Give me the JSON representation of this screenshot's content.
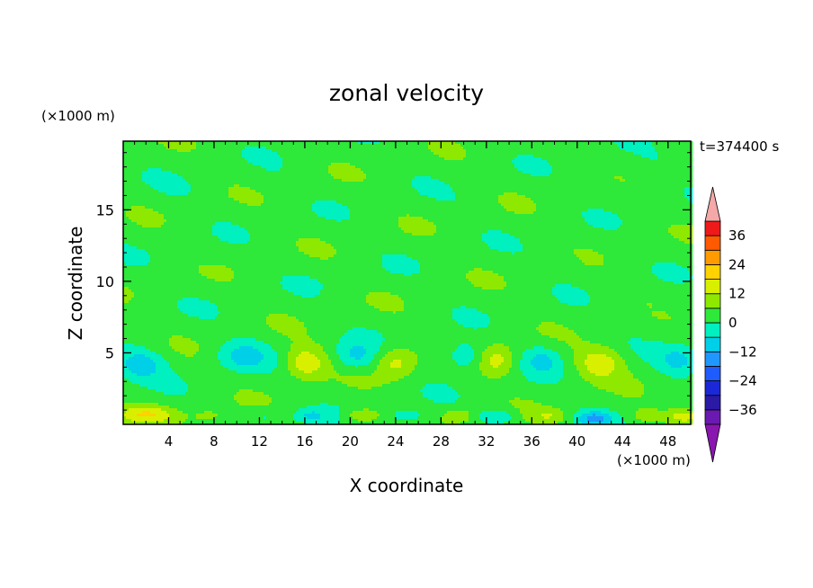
{
  "chart_data": {
    "type": "heatmap",
    "title": "zonal velocity",
    "xlabel": "X coordinate",
    "ylabel": "Z coordinate",
    "x_unit": "(×1000 m)",
    "y_unit": "(×1000 m)",
    "time_label": "t=374400 s",
    "xlim": [
      0,
      50
    ],
    "ylim": [
      0,
      19.8
    ],
    "x_ticks": [
      4,
      8,
      12,
      16,
      20,
      24,
      28,
      32,
      36,
      40,
      44,
      48
    ],
    "y_ticks": [
      5,
      10,
      15
    ],
    "x_tick_labels": [
      "4",
      "8",
      "12",
      "16",
      "20",
      "24",
      "28",
      "32",
      "36",
      "40",
      "44",
      "48"
    ],
    "y_tick_labels": [
      "5",
      "10",
      "15"
    ],
    "colorbar": {
      "levels": [
        -42,
        -36,
        -30,
        -24,
        -18,
        -12,
        -6,
        0,
        6,
        12,
        18,
        24,
        30,
        36,
        42
      ],
      "labels": [
        {
          "value": 36,
          "text": "36"
        },
        {
          "value": 24,
          "text": "24"
        },
        {
          "value": 12,
          "text": "12"
        },
        {
          "value": 0,
          "text": "0"
        },
        {
          "value": -12,
          "text": "−12"
        },
        {
          "value": -24,
          "text": "−24"
        },
        {
          "value": -36,
          "text": "−36"
        }
      ],
      "colors": [
        "#6a1ab0",
        "#2a1aa6",
        "#1b28d8",
        "#1f5cff",
        "#1f97ff",
        "#00cfe8",
        "#00f0c0",
        "#2ee83a",
        "#8fe800",
        "#d8f000",
        "#ffd200",
        "#ff9a00",
        "#ff5a00",
        "#ee1a1a"
      ],
      "under_color": "#8a16b0",
      "over_color": "#f4a8a8"
    },
    "background_value": 3,
    "features": [
      {
        "x": 13.5,
        "z": 17.0,
        "sx": 2.5,
        "sy": 0.8,
        "v": -1.5
      },
      {
        "x": 24.0,
        "z": 18.2,
        "sx": 2.5,
        "sy": 0.7,
        "v": -1.5
      },
      {
        "x": 5.0,
        "z": 16.4,
        "sx": 2.0,
        "sy": 0.7,
        "v": -1.5
      },
      {
        "x": 42.0,
        "z": 16.8,
        "sx": 3.0,
        "sy": 0.8,
        "v": -1.5
      },
      {
        "x": 47.5,
        "z": 18.3,
        "sx": 2.0,
        "sy": 0.7,
        "v": -1.5
      },
      {
        "x": 30.0,
        "z": 15.5,
        "sx": 2.0,
        "sy": 0.6,
        "v": -1.0
      },
      {
        "x": 20.0,
        "z": 10.3,
        "sx": 3.0,
        "sy": 0.7,
        "v": -1.5
      },
      {
        "x": 8.0,
        "z": 11.8,
        "sx": 2.5,
        "sy": 0.7,
        "v": -1.2
      },
      {
        "x": 38.0,
        "z": 11.5,
        "sx": 3.0,
        "sy": 0.8,
        "v": -1.2
      },
      {
        "x": 46.0,
        "z": 12.6,
        "sx": 2.5,
        "sy": 0.7,
        "v": -1.2
      },
      {
        "x": 3.0,
        "z": 8.2,
        "sx": 2.0,
        "sy": 0.6,
        "v": -1.0
      },
      {
        "x": 47.0,
        "z": 8.0,
        "sx": 2.0,
        "sy": 0.6,
        "v": -1.0
      },
      {
        "x": 1.5,
        "z": 4.2,
        "sx": 2.0,
        "sy": 1.0,
        "v": -13
      },
      {
        "x": 10.5,
        "z": 4.8,
        "sx": 2.2,
        "sy": 1.0,
        "v": -11
      },
      {
        "x": 20.5,
        "z": 4.8,
        "sx": 1.8,
        "sy": 1.0,
        "v": -10
      },
      {
        "x": 30.0,
        "z": 4.8,
        "sx": 1.6,
        "sy": 1.0,
        "v": -10
      },
      {
        "x": 37.0,
        "z": 4.5,
        "sx": 1.6,
        "sy": 1.0,
        "v": -9
      },
      {
        "x": 49.0,
        "z": 4.5,
        "sx": 1.8,
        "sy": 1.0,
        "v": -11
      },
      {
        "x": 16.0,
        "z": 4.3,
        "sx": 1.8,
        "sy": 1.1,
        "v": 14
      },
      {
        "x": 24.0,
        "z": 4.3,
        "sx": 1.7,
        "sy": 1.1,
        "v": 11
      },
      {
        "x": 33.0,
        "z": 4.5,
        "sx": 1.5,
        "sy": 1.1,
        "v": 11
      },
      {
        "x": 42.0,
        "z": 4.3,
        "sx": 2.0,
        "sy": 1.1,
        "v": 13
      },
      {
        "x": 2.0,
        "z": 0.7,
        "sx": 2.5,
        "sy": 0.6,
        "v": 13
      },
      {
        "x": 7.5,
        "z": 0.6,
        "sx": 1.5,
        "sy": 0.5,
        "v": 5
      },
      {
        "x": 12.5,
        "z": 0.6,
        "sx": 1.5,
        "sy": 0.5,
        "v": -5
      },
      {
        "x": 16.5,
        "z": 0.6,
        "sx": 1.5,
        "sy": 0.5,
        "v": -9
      },
      {
        "x": 21.0,
        "z": 0.6,
        "sx": 1.5,
        "sy": 0.5,
        "v": 10
      },
      {
        "x": 25.0,
        "z": 0.6,
        "sx": 1.5,
        "sy": 0.5,
        "v": -8
      },
      {
        "x": 29.5,
        "z": 0.6,
        "sx": 1.3,
        "sy": 0.5,
        "v": 9
      },
      {
        "x": 33.0,
        "z": 0.6,
        "sx": 1.5,
        "sy": 0.5,
        "v": -10
      },
      {
        "x": 37.5,
        "z": 0.6,
        "sx": 1.5,
        "sy": 0.5,
        "v": 7
      },
      {
        "x": 41.5,
        "z": 0.4,
        "sx": 1.5,
        "sy": 0.5,
        "v": -16
      },
      {
        "x": 46.0,
        "z": 0.6,
        "sx": 1.5,
        "sy": 0.5,
        "v": 6
      },
      {
        "x": 49.5,
        "z": 0.6,
        "sx": 1.5,
        "sy": 0.5,
        "v": 12
      }
    ]
  }
}
